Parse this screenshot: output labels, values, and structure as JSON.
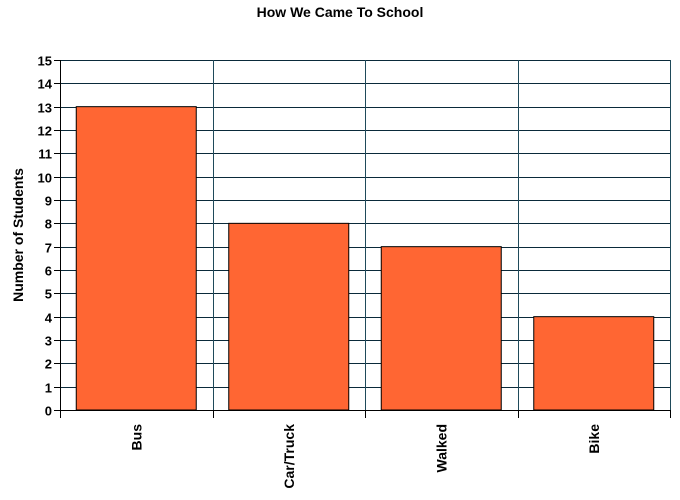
{
  "chart_data": {
    "type": "bar",
    "title": "How We Came To School",
    "xlabel": "",
    "ylabel": "Number of Students",
    "categories": [
      "Bus",
      "Car/Truck",
      "Walked",
      "Bike"
    ],
    "values": [
      13,
      8,
      7,
      4
    ],
    "ylim": [
      0,
      15
    ],
    "ytick_step": 1,
    "grid": true,
    "legend": "none",
    "colors": {
      "bar_fill": "#ff6633",
      "bar_stroke": "#000000",
      "grid_h": "#0a2a3a",
      "grid_v": "#1f4a5a",
      "axis": "#000000"
    }
  }
}
